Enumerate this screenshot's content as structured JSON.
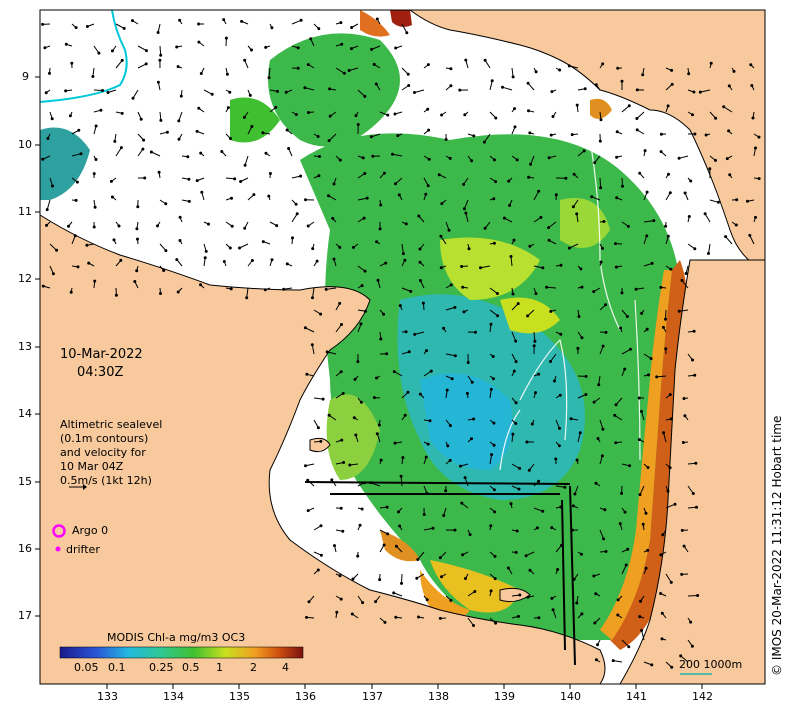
{
  "map": {
    "date": "10-Mar-2022",
    "time": "04:30Z",
    "legend_lines": [
      "Altimetric sealevel",
      "(0.1m contours)",
      "and velocity for",
      "10 Mar 04Z",
      "0.5m/s (1kt 12h)"
    ],
    "argo_label": "Argo 0",
    "drifter_label": "drifter",
    "credit": "© IMOS 20-Mar-2022 11:31:12 Hobart time",
    "colorbar": {
      "title": "MODIS Chl-a mg/m3 OC3",
      "ticks": [
        "0.05",
        "0.1",
        "0.25",
        "0.5",
        "1",
        "2",
        "4"
      ]
    },
    "scale_bar_label": "200  1000m",
    "x_ticks": [
      "133",
      "134",
      "135",
      "136",
      "137",
      "138",
      "139",
      "140",
      "141",
      "142"
    ],
    "y_ticks": [
      "9",
      "10",
      "11",
      "12",
      "13",
      "14",
      "15",
      "16",
      "17"
    ],
    "colors": {
      "land": "#f7c99c",
      "ocean_nodata": "#ffffff",
      "argo": "#ff00ff",
      "drifter": "#ff00ff",
      "scale_bar": "#20b2aa"
    }
  }
}
